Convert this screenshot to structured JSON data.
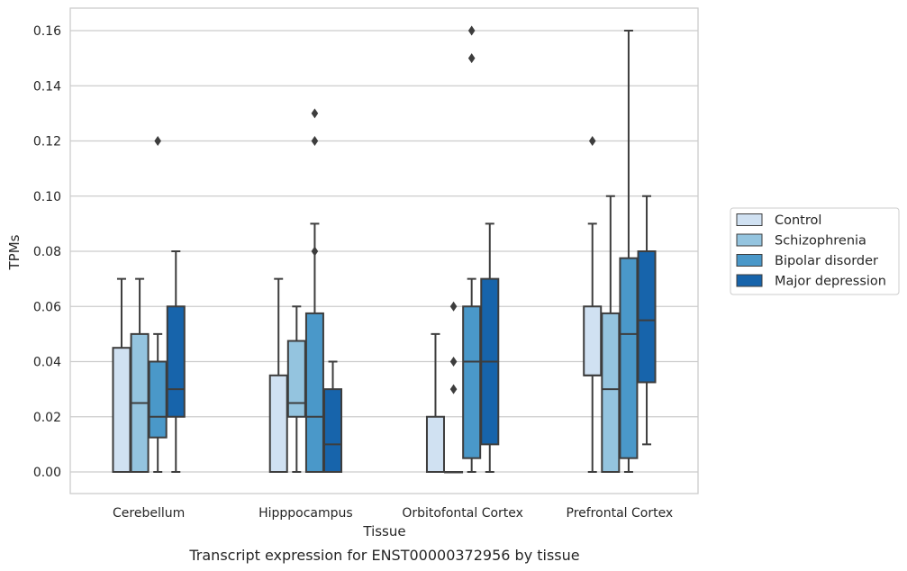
{
  "caption": "Transcript expression for ENST00000372956 by tissue",
  "chart_data": {
    "type": "box",
    "xlabel": "Tissue",
    "ylabel": "TPMs",
    "ylim": [
      -0.0078,
      0.168
    ],
    "yticks": [
      "0.00",
      "0.02",
      "0.04",
      "0.06",
      "0.08",
      "0.10",
      "0.12",
      "0.14",
      "0.16"
    ],
    "grid": true,
    "legend_position": "right",
    "categories": [
      "Cerebellum",
      "Hipppocampus",
      "Orbitofontal Cortex",
      "Prefrontal Cortex"
    ],
    "series": [
      {
        "name": "Control",
        "color": "#d0e1f2",
        "boxes": [
          {
            "whislo": 0.0,
            "q1": 0.0,
            "med": 0.0,
            "q3": 0.045,
            "whishi": 0.07,
            "fliers": []
          },
          {
            "whislo": 0.0,
            "q1": 0.0,
            "med": 0.0,
            "q3": 0.035,
            "whishi": 0.07,
            "fliers": []
          },
          {
            "whislo": 0.0,
            "q1": 0.0,
            "med": 0.0,
            "q3": 0.02,
            "whishi": 0.05,
            "fliers": []
          },
          {
            "whislo": 0.0,
            "q1": 0.035,
            "med": 0.035,
            "q3": 0.06,
            "whishi": 0.09,
            "fliers": [
              0.12
            ]
          }
        ]
      },
      {
        "name": "Schizophrenia",
        "color": "#94c4df",
        "boxes": [
          {
            "whislo": 0.0,
            "q1": 0.0,
            "med": 0.025,
            "q3": 0.05,
            "whishi": 0.07,
            "fliers": []
          },
          {
            "whislo": 0.0,
            "q1": 0.02,
            "med": 0.025,
            "q3": 0.0475,
            "whishi": 0.06,
            "fliers": []
          },
          {
            "whislo": 0.0,
            "q1": 0.0,
            "med": 0.0,
            "q3": 0.0,
            "whishi": 0.0,
            "fliers": [
              0.03,
              0.04,
              0.06
            ]
          },
          {
            "whislo": 0.0,
            "q1": 0.0,
            "med": 0.03,
            "q3": 0.0575,
            "whishi": 0.1,
            "fliers": []
          }
        ]
      },
      {
        "name": "Bipolar disorder",
        "color": "#4a98c9",
        "boxes": [
          {
            "whislo": 0.0,
            "q1": 0.0125,
            "med": 0.02,
            "q3": 0.04,
            "whishi": 0.05,
            "fliers": [
              0.12
            ]
          },
          {
            "whislo": 0.0,
            "q1": 0.0,
            "med": 0.02,
            "q3": 0.0575,
            "whishi": 0.09,
            "fliers": [
              0.08,
              0.12,
              0.13
            ]
          },
          {
            "whislo": 0.0,
            "q1": 0.005,
            "med": 0.04,
            "q3": 0.06,
            "whishi": 0.07,
            "fliers": [
              0.15,
              0.16
            ]
          },
          {
            "whislo": 0.0,
            "q1": 0.005,
            "med": 0.05,
            "q3": 0.0775,
            "whishi": 0.16,
            "fliers": []
          }
        ]
      },
      {
        "name": "Major depression",
        "color": "#1764ab",
        "boxes": [
          {
            "whislo": 0.0,
            "q1": 0.02,
            "med": 0.03,
            "q3": 0.06,
            "whishi": 0.08,
            "fliers": []
          },
          {
            "whislo": 0.0,
            "q1": 0.0,
            "med": 0.01,
            "q3": 0.03,
            "whishi": 0.04,
            "fliers": []
          },
          {
            "whislo": 0.0,
            "q1": 0.01,
            "med": 0.04,
            "q3": 0.07,
            "whishi": 0.09,
            "fliers": []
          },
          {
            "whislo": 0.01,
            "q1": 0.0325,
            "med": 0.055,
            "q3": 0.08,
            "whishi": 0.1,
            "fliers": []
          }
        ]
      }
    ]
  }
}
